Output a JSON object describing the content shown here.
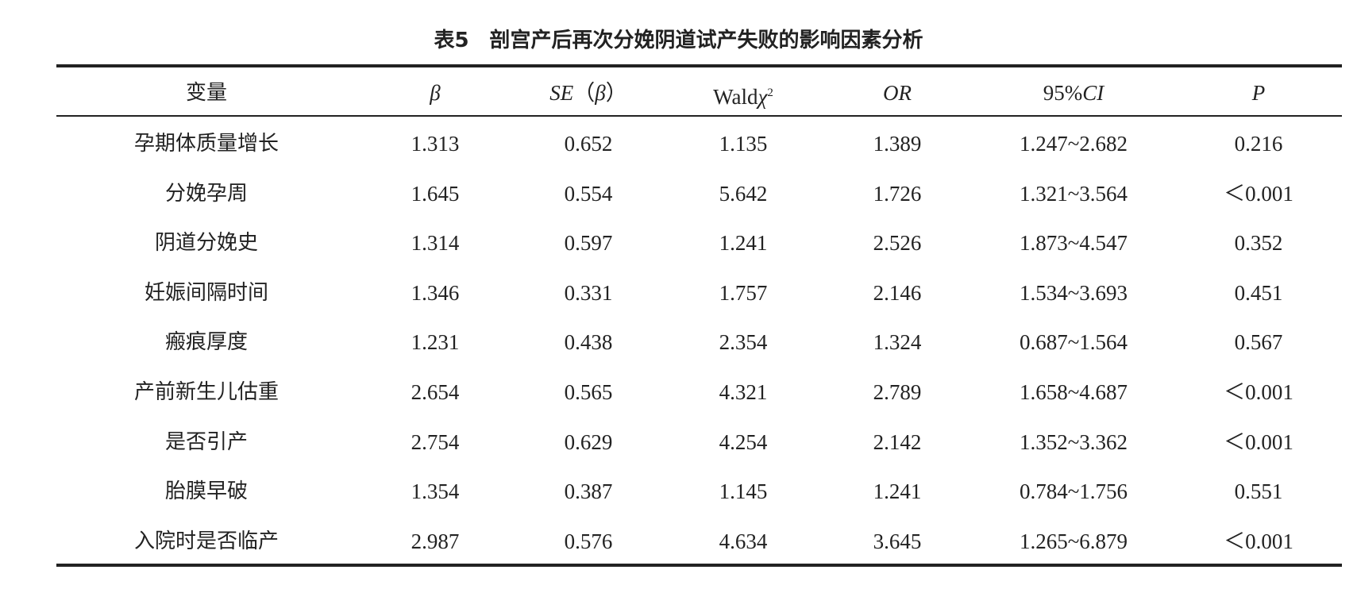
{
  "table": {
    "title": "表5　剖宫产后再次分娩阴道试产失败的影响因素分析",
    "header": [
      [
        "变量"
      ],
      [
        "β"
      ],
      [
        "SE",
        "（",
        "β",
        "）"
      ],
      [
        "Wald",
        "χ",
        "2"
      ],
      [
        "OR"
      ],
      [
        "95%",
        "CI"
      ],
      [
        "P"
      ]
    ],
    "rows": [
      [
        "孕期体质量增长",
        "1.313",
        "0.652",
        "1.135",
        "1.389",
        "1.247~2.682",
        "0.216"
      ],
      [
        "分娩孕周",
        "1.645",
        "0.554",
        "5.642",
        "1.726",
        "1.321~3.564",
        "＜0.001"
      ],
      [
        "阴道分娩史",
        "1.314",
        "0.597",
        "1.241",
        "2.526",
        "1.873~4.547",
        "0.352"
      ],
      [
        "妊娠间隔时间",
        "1.346",
        "0.331",
        "1.757",
        "2.146",
        "1.534~3.693",
        "0.451"
      ],
      [
        "瘢痕厚度",
        "1.231",
        "0.438",
        "2.354",
        "1.324",
        "0.687~1.564",
        "0.567"
      ],
      [
        "产前新生儿估重",
        "2.654",
        "0.565",
        "4.321",
        "2.789",
        "1.658~4.687",
        "＜0.001"
      ],
      [
        "是否引产",
        "2.754",
        "0.629",
        "4.254",
        "2.142",
        "1.352~3.362",
        "＜0.001"
      ],
      [
        "胎膜早破",
        "1.354",
        "0.387",
        "1.145",
        "1.241",
        "0.784~1.756",
        "0.551"
      ],
      [
        "入院时是否临产",
        "2.987",
        "0.576",
        "4.634",
        "3.645",
        "1.265~6.879",
        "＜0.001"
      ]
    ]
  }
}
